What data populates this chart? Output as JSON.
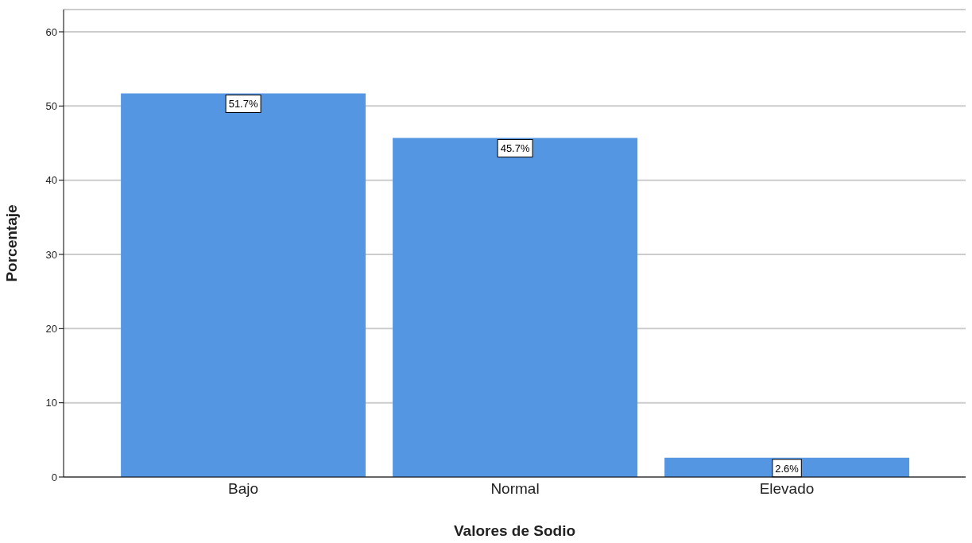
{
  "chart_data": {
    "type": "bar",
    "xlabel": "Valores de Sodio",
    "ylabel": "Porcentaje",
    "categories": [
      "Bajo",
      "Normal",
      "Elevado"
    ],
    "values": [
      51.7,
      45.7,
      2.6
    ],
    "value_labels": [
      "51.7%",
      "45.7%",
      "2.6%"
    ],
    "color": "#5596e3",
    "ylim": [
      0,
      63
    ],
    "yticks": [
      0,
      10,
      20,
      30,
      40,
      50,
      60
    ],
    "grid": "y"
  }
}
